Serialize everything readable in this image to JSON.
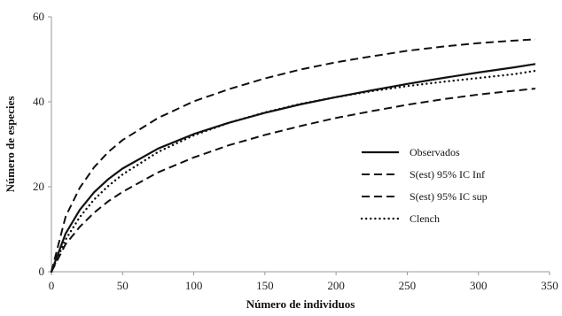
{
  "chart_data": {
    "type": "line",
    "xlabel": "Número de individuos",
    "ylabel": "Número de especies",
    "xlim": [
      0,
      350
    ],
    "ylim": [
      0,
      60
    ],
    "x_ticks": [
      "0",
      "50",
      "100",
      "150",
      "200",
      "250",
      "300",
      "350"
    ],
    "y_ticks": [
      "0",
      "20",
      "40",
      "60"
    ],
    "grid": false,
    "legend_position": "right",
    "x": [
      0,
      10,
      20,
      30,
      40,
      50,
      75,
      100,
      125,
      150,
      175,
      200,
      225,
      250,
      275,
      300,
      325,
      340
    ],
    "series": [
      {
        "name": "Observados",
        "style": "solid",
        "values": [
          0,
          9,
          14.6,
          18.7,
          21.8,
          24.3,
          29.0,
          32.4,
          35.1,
          37.4,
          39.4,
          41.1,
          42.7,
          44.2,
          45.6,
          46.9,
          48.1,
          48.9
        ]
      },
      {
        "name": "S(est) 95% IC Inf",
        "style": "dashed",
        "values": [
          0,
          13,
          19.8,
          24.6,
          28.2,
          31.0,
          36.2,
          40.1,
          43.0,
          45.5,
          47.6,
          49.3,
          50.7,
          52.0,
          53.0,
          53.8,
          54.4,
          54.7
        ]
      },
      {
        "name": "S(est) 95% IC sup",
        "style": "dashed",
        "values": [
          0,
          6.5,
          10.6,
          13.9,
          16.6,
          18.8,
          23.4,
          26.9,
          29.8,
          32.2,
          34.3,
          36.2,
          37.8,
          39.3,
          40.6,
          41.7,
          42.6,
          43.1
        ]
      },
      {
        "name": "Clench",
        "style": "dotted",
        "values": [
          0,
          7.6,
          12.9,
          17.0,
          20.2,
          22.9,
          28.2,
          32.1,
          35.1,
          37.5,
          39.5,
          41.1,
          42.5,
          43.7,
          44.7,
          45.6,
          46.5,
          47.3
        ]
      }
    ]
  }
}
